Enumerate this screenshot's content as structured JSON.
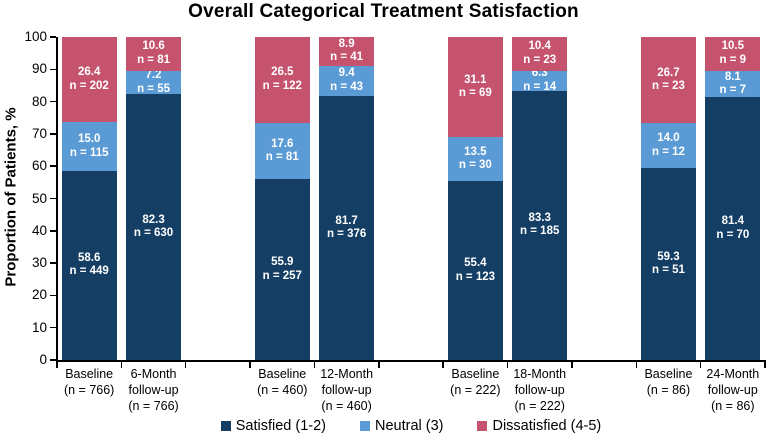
{
  "chart_data": {
    "type": "bar",
    "stacked": true,
    "title": "Overall Categorical Treatment Satisfaction",
    "ylabel": "Proportion of Patients, %",
    "xlabel": "",
    "ylim": [
      0,
      100
    ],
    "yticks": [
      0,
      10,
      20,
      30,
      40,
      50,
      60,
      70,
      80,
      90,
      100
    ],
    "grid": false,
    "legend_position": "bottom",
    "bar_label_text_color": "#FFFFFF",
    "axis_color": "#000000",
    "count_prefix": "n = ",
    "categories": [
      [
        "Baseline",
        "(n = 766)"
      ],
      [
        "6-Month",
        "follow-up",
        "(n = 766)"
      ],
      [
        "Baseline",
        "(n = 460)"
      ],
      [
        "12-Month",
        "follow-up",
        "(n = 460)"
      ],
      [
        "Baseline",
        "(n = 222)"
      ],
      [
        "18-Month",
        "follow-up",
        "(n = 222)"
      ],
      [
        "Baseline",
        "(n = 86)"
      ],
      [
        "24-Month",
        "follow-up",
        "(n = 86)"
      ]
    ],
    "series": [
      {
        "name": "Satisfied (1-2)",
        "key": "satisfied",
        "color": "#153E64",
        "values": [
          58.6,
          82.3,
          55.9,
          81.7,
          55.4,
          83.3,
          59.3,
          81.4
        ],
        "value_labels": [
          "58.6",
          "82.3",
          "55.9",
          "81.7",
          "55.4",
          "83.3",
          "59.3",
          "81.4"
        ],
        "counts": [
          449,
          630,
          257,
          376,
          123,
          185,
          51,
          70
        ]
      },
      {
        "name": "Neutral (3)",
        "key": "neutral",
        "color": "#5B9BD5",
        "values": [
          15.0,
          7.2,
          17.6,
          9.4,
          13.5,
          6.3,
          14.0,
          8.1
        ],
        "value_labels": [
          "15.0",
          "7.2",
          "17.6",
          "9.4",
          "13.5",
          "6.3",
          "14.0",
          "8.1"
        ],
        "counts": [
          115,
          55,
          81,
          43,
          30,
          14,
          12,
          7
        ]
      },
      {
        "name": "Dissatisfied (4-5)",
        "key": "dissatisfied",
        "color": "#C5536E",
        "values": [
          26.4,
          10.6,
          26.5,
          8.9,
          31.1,
          10.4,
          26.7,
          10.5
        ],
        "value_labels": [
          "26.4",
          "10.6",
          "26.5",
          "8.9",
          "31.1",
          "10.4",
          "26.7",
          "10.5"
        ],
        "counts": [
          202,
          81,
          122,
          41,
          69,
          23,
          23,
          9
        ]
      }
    ]
  }
}
